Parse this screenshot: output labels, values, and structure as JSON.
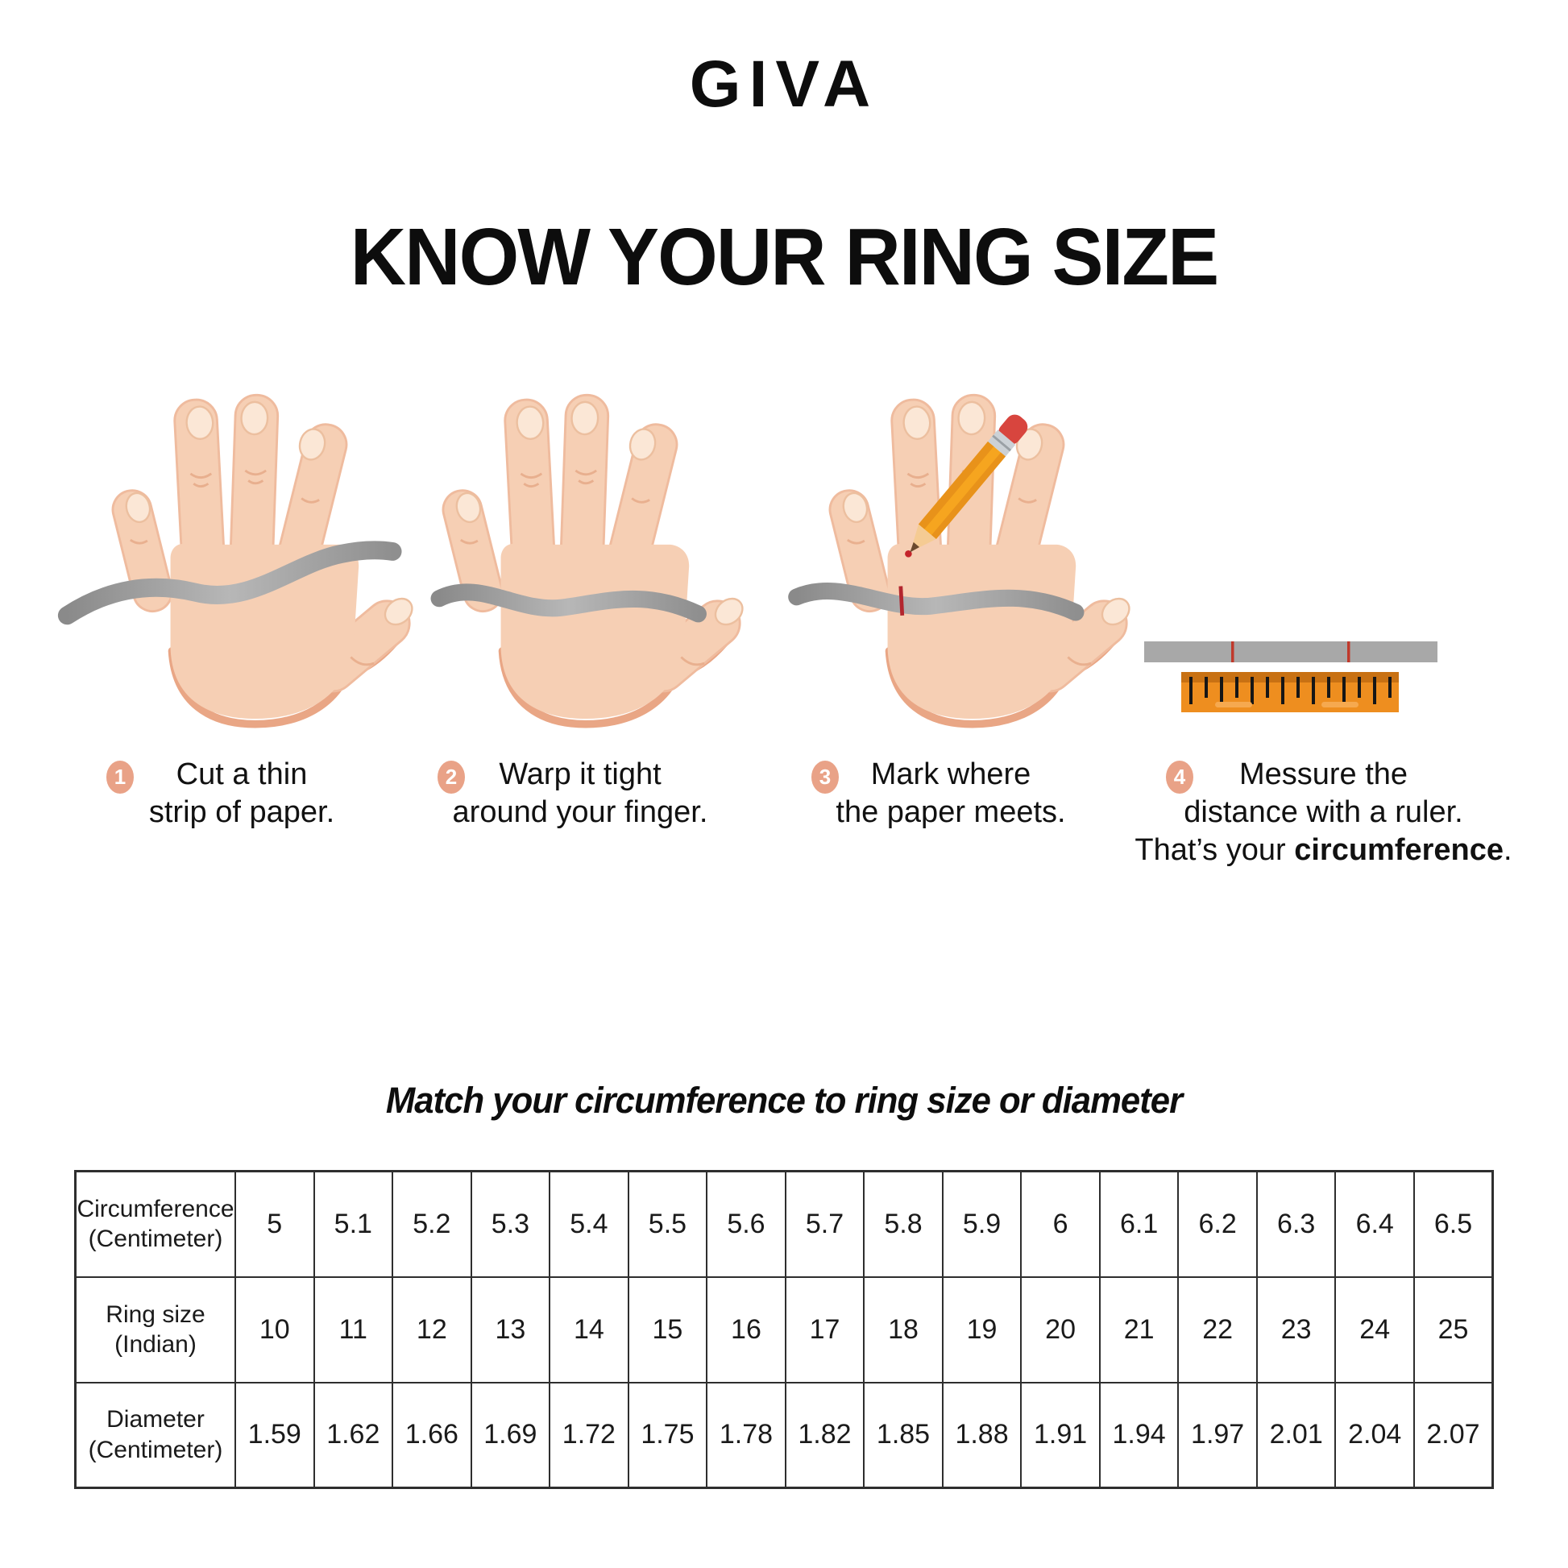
{
  "brand": {
    "logo_text": "GIVA"
  },
  "title": "KNOW YOUR RING SIZE",
  "steps": [
    {
      "num": "1",
      "line1": "Cut a thin",
      "line2": "strip of paper."
    },
    {
      "num": "2",
      "line1": "Warp it tight",
      "line2": "around your finger."
    },
    {
      "num": "3",
      "line1": "Mark where",
      "line2": "the paper meets."
    },
    {
      "num": "4",
      "line1": "Messure the",
      "line2": "distance with a ruler.",
      "line3_prefix": "That’s your ",
      "line3_bold": "circumference",
      "line3_suffix": "."
    }
  ],
  "illustrations": {
    "step1": "hand with loose paper strip",
    "step2": "hand with paper strip wrapped around finger",
    "step3": "hand with pencil marking the paper strip",
    "step4": "marked paper strip measured with ruler"
  },
  "table_section": {
    "heading": "Match your circumference to ring size or diameter",
    "rows": [
      {
        "label_line1": "Circumference",
        "label_line2": "(Centimeter)",
        "values": [
          "5",
          "5.1",
          "5.2",
          "5.3",
          "5.4",
          "5.5",
          "5.6",
          "5.7",
          "5.8",
          "5.9",
          "6",
          "6.1",
          "6.2",
          "6.3",
          "6.4",
          "6.5"
        ]
      },
      {
        "label_line1": "Ring size",
        "label_line2": "(Indian)",
        "values": [
          "10",
          "11",
          "12",
          "13",
          "14",
          "15",
          "16",
          "17",
          "18",
          "19",
          "20",
          "21",
          "22",
          "23",
          "24",
          "25"
        ]
      },
      {
        "label_line1": "Diameter",
        "label_line2": "(Centimeter)",
        "values": [
          "1.59",
          "1.62",
          "1.66",
          "1.69",
          "1.72",
          "1.75",
          "1.78",
          "1.82",
          "1.85",
          "1.88",
          "1.91",
          "1.94",
          "1.97",
          "2.01",
          "2.04",
          "2.07"
        ]
      }
    ]
  },
  "colors": {
    "step_circle": "#e9a287",
    "skin": "#f6cfb4",
    "skin_shadow": "#e9a685",
    "strip_gray": "#9b9b9b",
    "mark_red": "#c0392b",
    "pencil_yellow": "#f6a51f",
    "eraser_red": "#d8453e",
    "ruler_orange": "#ee8e1f",
    "ruler_band": "#c87113"
  }
}
